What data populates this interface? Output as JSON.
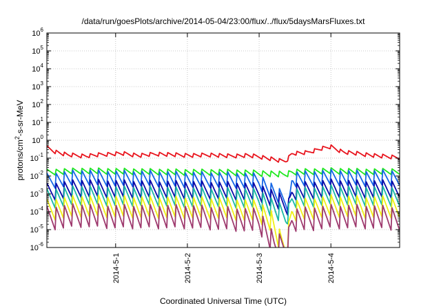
{
  "chart_data": {
    "type": "line",
    "title": "/data/run/goesPlots/archive/2014-05-04/23:00/flux/../flux/5daysMarsFluxes.txt",
    "xlabel": "Coordinated Universal Time (UTC)",
    "ylabel_parts": [
      "protons/cm",
      "2",
      "-s-sr-MeV"
    ],
    "y_scale": "log",
    "ylim": [
      1e-06,
      1000000.0
    ],
    "y_ticks": [
      {
        "value": 1000000.0,
        "base": "10",
        "exp": "6"
      },
      {
        "value": 100000.0,
        "base": "10",
        "exp": "5"
      },
      {
        "value": 10000.0,
        "base": "10",
        "exp": "4"
      },
      {
        "value": 1000.0,
        "base": "10",
        "exp": "3"
      },
      {
        "value": 100.0,
        "base": "10",
        "exp": "2"
      },
      {
        "value": 10.0,
        "base": "10",
        "exp": "1"
      },
      {
        "value": 1.0,
        "base": "10",
        "exp": "0"
      },
      {
        "value": 0.1,
        "base": "10",
        "exp": "-1"
      },
      {
        "value": 0.01,
        "base": "10",
        "exp": "-2"
      },
      {
        "value": 0.001,
        "base": "10",
        "exp": "-3"
      },
      {
        "value": 0.0001,
        "base": "10",
        "exp": "-4"
      },
      {
        "value": 1e-05,
        "base": "10",
        "exp": "-5"
      },
      {
        "value": 1e-06,
        "base": "10",
        "exp": "-6"
      }
    ],
    "xlim": [
      "2014-04-30T01:00",
      "2014-05-04T23:00"
    ],
    "x_ticks": [
      "2014-5-1",
      "2014-5-2",
      "2014-5-3",
      "2014-5-4"
    ],
    "grid": true,
    "series": [
      {
        "color": "#e8121b",
        "points": [
          [
            "2014-04-30T01:00",
            0.38
          ],
          [
            "2014-04-30T04:00",
            0.22
          ],
          [
            "2014-04-30T08:00",
            0.15
          ],
          [
            "2014-04-30T14:00",
            0.13
          ],
          [
            "2014-04-30T20:00",
            0.16
          ],
          [
            "2014-05-01T02:00",
            0.18
          ],
          [
            "2014-05-01T08:00",
            0.14
          ],
          [
            "2014-05-01T14:00",
            0.17
          ],
          [
            "2014-05-01T20:00",
            0.15
          ],
          [
            "2014-05-02T02:00",
            0.14
          ],
          [
            "2014-05-02T08:00",
            0.15
          ],
          [
            "2014-05-02T14:00",
            0.13
          ],
          [
            "2014-05-02T20:00",
            0.14
          ],
          [
            "2014-05-03T00:00",
            0.12
          ],
          [
            "2014-05-03T04:00",
            0.09
          ],
          [
            "2014-05-03T07:00",
            0.07
          ],
          [
            "2014-05-03T09:00",
            0.07
          ],
          [
            "2014-05-03T11:00",
            0.18
          ],
          [
            "2014-05-03T16:00",
            0.2
          ],
          [
            "2014-05-03T21:00",
            0.35
          ],
          [
            "2014-05-04T00:00",
            0.42
          ],
          [
            "2014-05-04T04:00",
            0.22
          ],
          [
            "2014-05-04T10:00",
            0.17
          ],
          [
            "2014-05-04T16:00",
            0.13
          ],
          [
            "2014-05-04T23:00",
            0.11
          ]
        ]
      },
      {
        "color": "#1ee81e",
        "points": [
          [
            "2014-04-30T01:00",
            0.016
          ],
          [
            "2014-04-30T12:00",
            0.019
          ],
          [
            "2014-05-01T00:00",
            0.018
          ],
          [
            "2014-05-01T12:00",
            0.017
          ],
          [
            "2014-05-02T00:00",
            0.016
          ],
          [
            "2014-05-02T12:00",
            0.016
          ],
          [
            "2014-05-03T00:00",
            0.014
          ],
          [
            "2014-05-03T08:00",
            0.012
          ],
          [
            "2014-05-03T10:00",
            0.014
          ],
          [
            "2014-05-03T11:00",
            0.016
          ],
          [
            "2014-05-04T00:00",
            0.019
          ],
          [
            "2014-05-04T12:00",
            0.017
          ],
          [
            "2014-05-04T23:00",
            0.018
          ]
        ]
      },
      {
        "color": "#1466e6",
        "points": [
          [
            "2014-04-30T01:00",
            0.005
          ],
          [
            "2014-04-30T12:00",
            0.008
          ],
          [
            "2014-05-01T00:00",
            0.007
          ],
          [
            "2014-05-01T12:00",
            0.007
          ],
          [
            "2014-05-02T00:00",
            0.006
          ],
          [
            "2014-05-02T12:00",
            0.006
          ],
          [
            "2014-05-03T00:00",
            0.005
          ],
          [
            "2014-05-03T06:00",
            0.0008
          ],
          [
            "2014-05-03T09:00",
            0.0004
          ],
          [
            "2014-05-03T10:00",
            0.0002
          ],
          [
            "2014-05-03T11:00",
            0.006
          ],
          [
            "2014-05-04T00:00",
            0.008
          ],
          [
            "2014-05-04T12:00",
            0.007
          ],
          [
            "2014-05-04T23:00",
            0.008
          ]
        ]
      },
      {
        "color": "#0a0aa8",
        "points": [
          [
            "2014-04-30T01:00",
            0.0012
          ],
          [
            "2014-04-30T12:00",
            0.002
          ],
          [
            "2014-05-01T00:00",
            0.0018
          ],
          [
            "2014-05-01T12:00",
            0.0017
          ],
          [
            "2014-05-02T00:00",
            0.0016
          ],
          [
            "2014-05-02T12:00",
            0.0015
          ],
          [
            "2014-05-03T00:00",
            0.0012
          ],
          [
            "2014-05-03T06:00",
            0.0004
          ],
          [
            "2014-05-03T09:00",
            0.0002
          ],
          [
            "2014-05-03T10:00",
            0.0002
          ],
          [
            "2014-05-03T11:00",
            0.0012
          ],
          [
            "2014-05-04T00:00",
            0.002
          ],
          [
            "2014-05-04T12:00",
            0.0017
          ],
          [
            "2014-05-04T23:00",
            0.0019
          ]
        ]
      },
      {
        "color": "#1ab8a4",
        "points": [
          [
            "2014-04-30T01:00",
            0.0005
          ],
          [
            "2014-04-30T12:00",
            0.0008
          ],
          [
            "2014-05-01T00:00",
            0.0007
          ],
          [
            "2014-05-01T12:00",
            0.0007
          ],
          [
            "2014-05-02T00:00",
            0.0006
          ],
          [
            "2014-05-02T12:00",
            0.0006
          ],
          [
            "2014-05-03T00:00",
            0.0005
          ],
          [
            "2014-05-03T06:00",
            0.0001
          ],
          [
            "2014-05-03T09:00",
            5e-05
          ],
          [
            "2014-05-03T10:00",
            0.0001
          ],
          [
            "2014-05-03T11:00",
            0.0005
          ],
          [
            "2014-05-04T00:00",
            0.0008
          ],
          [
            "2014-05-04T12:00",
            0.0007
          ],
          [
            "2014-05-04T23:00",
            0.0007
          ]
        ]
      },
      {
        "color": "#f0f014",
        "points": [
          [
            "2014-04-30T01:00",
            0.00012
          ],
          [
            "2014-04-30T12:00",
            0.0002
          ],
          [
            "2014-05-01T00:00",
            0.00018
          ],
          [
            "2014-05-01T12:00",
            0.00017
          ],
          [
            "2014-05-02T00:00",
            0.00016
          ],
          [
            "2014-05-02T12:00",
            0.00015
          ],
          [
            "2014-05-03T00:00",
            0.0001
          ],
          [
            "2014-05-03T04:00",
            3e-05
          ],
          [
            "2014-05-03T07:00",
            2e-06
          ],
          [
            "2014-05-03T09:00",
            1e-06
          ],
          [
            "2014-05-03T10:00",
            1e-05
          ],
          [
            "2014-05-03T11:00",
            0.0001
          ],
          [
            "2014-05-04T00:00",
            0.0002
          ],
          [
            "2014-05-04T12:00",
            0.00017
          ],
          [
            "2014-05-04T23:00",
            0.00018
          ]
        ]
      },
      {
        "color": "#9e3a6e",
        "points": [
          [
            "2014-04-30T01:00",
            4e-05
          ],
          [
            "2014-04-30T12:00",
            6e-05
          ],
          [
            "2014-05-01T00:00",
            5e-05
          ],
          [
            "2014-05-01T12:00",
            5e-05
          ],
          [
            "2014-05-02T00:00",
            5e-05
          ],
          [
            "2014-05-02T12:00",
            4e-05
          ],
          [
            "2014-05-03T00:00",
            3e-05
          ],
          [
            "2014-05-03T03:00",
            5e-06
          ],
          [
            "2014-05-03T05:00",
            1.3e-06
          ],
          [
            "2014-05-03T08:00",
            1e-06
          ],
          [
            "2014-05-03T09:00",
            1e-06
          ],
          [
            "2014-05-03T10:00",
            4e-06
          ],
          [
            "2014-05-03T11:00",
            3e-05
          ],
          [
            "2014-05-04T00:00",
            5e-05
          ],
          [
            "2014-05-04T12:00",
            5e-05
          ],
          [
            "2014-05-04T23:00",
            4e-05
          ]
        ]
      }
    ]
  }
}
